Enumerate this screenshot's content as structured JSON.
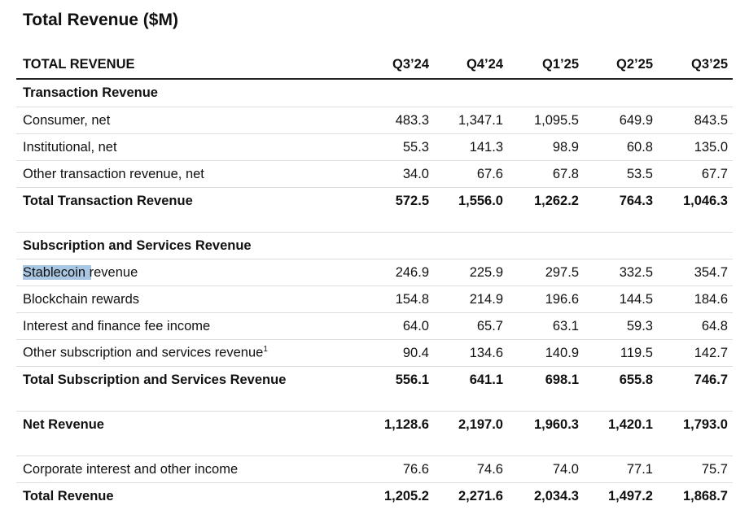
{
  "title": "Total Revenue ($M)",
  "table": {
    "header": [
      "TOTAL REVENUE",
      "Q3’24",
      "Q4’24",
      "Q1’25",
      "Q2’25",
      "Q3’25"
    ],
    "rows": [
      {
        "style": "section",
        "label": "Transaction Revenue",
        "values": []
      },
      {
        "style": "item",
        "label": "Consumer, net",
        "values": [
          "483.3",
          "1,347.1",
          "1,095.5",
          "649.9",
          "843.5"
        ]
      },
      {
        "style": "item",
        "label": "Institutional, net",
        "values": [
          "55.3",
          "141.3",
          "98.9",
          "60.8",
          "135.0"
        ]
      },
      {
        "style": "item",
        "label": "Other transaction revenue, net",
        "values": [
          "34.0",
          "67.6",
          "67.8",
          "53.5",
          "67.7"
        ]
      },
      {
        "style": "total",
        "label": "Total Transaction Revenue",
        "values": [
          "572.5",
          "1,556.0",
          "1,262.2",
          "764.3",
          "1,046.3"
        ]
      },
      {
        "style": "section",
        "label": "Subscription and Services Revenue",
        "values": []
      },
      {
        "style": "item",
        "label": "Stablecoin revenue",
        "values": [
          "246.9",
          "225.9",
          "297.5",
          "332.5",
          "354.7"
        ]
      },
      {
        "style": "item",
        "label": "Blockchain rewards",
        "values": [
          "154.8",
          "214.9",
          "196.6",
          "144.5",
          "184.6"
        ]
      },
      {
        "style": "item",
        "label": "Interest and finance fee income",
        "values": [
          "64.0",
          "65.7",
          "63.1",
          "59.3",
          "64.8"
        ]
      },
      {
        "style": "item",
        "label": "Other subscription and services revenue",
        "footnote": "1",
        "values": [
          "90.4",
          "134.6",
          "140.9",
          "119.5",
          "142.7"
        ]
      },
      {
        "style": "total",
        "label": "Total Subscription and Services Revenue",
        "values": [
          "556.1",
          "641.1",
          "698.1",
          "655.8",
          "746.7"
        ]
      },
      {
        "style": "total",
        "label": "Net Revenue",
        "values": [
          "1,128.6",
          "2,197.0",
          "1,960.3",
          "1,420.1",
          "1,793.0"
        ]
      },
      {
        "style": "item",
        "label": "Corporate interest and other income",
        "values": [
          "76.6",
          "74.6",
          "74.0",
          "77.1",
          "75.7"
        ]
      },
      {
        "style": "total",
        "label": "Total Revenue",
        "values": [
          "1,205.2",
          "2,271.6",
          "2,034.3",
          "1,497.2",
          "1,868.7"
        ]
      }
    ]
  }
}
